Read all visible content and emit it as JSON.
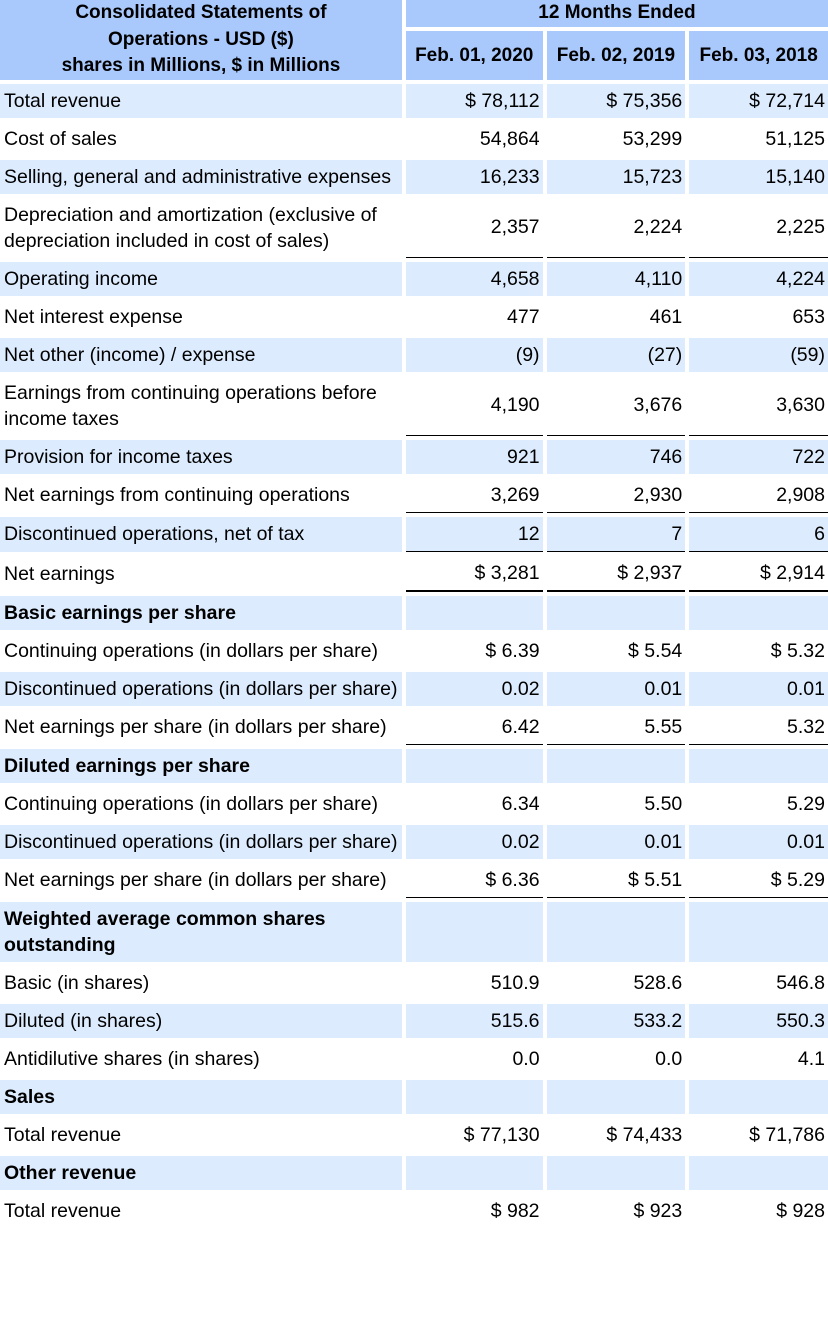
{
  "header": {
    "title_lines": [
      "Consolidated Statements of",
      "Operations - USD ($)",
      "shares in Millions, $ in Millions"
    ],
    "period_label": "12 Months Ended",
    "columns": [
      "Feb. 01, 2020",
      "Feb. 02, 2019",
      "Feb. 03, 2018"
    ]
  },
  "rows": [
    {
      "label": "Total revenue",
      "values": [
        "$ 78,112",
        "$ 75,356",
        "$ 72,714"
      ]
    },
    {
      "label": "Cost of sales",
      "values": [
        "54,864",
        "53,299",
        "51,125"
      ]
    },
    {
      "label": "Selling, general and administrative expenses",
      "values": [
        "16,233",
        "15,723",
        "15,140"
      ]
    },
    {
      "label": "Depreciation and amortization (exclusive of depreciation included in cost of sales)",
      "values": [
        "2,357",
        "2,224",
        "2,225"
      ]
    },
    {
      "label": "Operating income",
      "values": [
        "4,658",
        "4,110",
        "4,224"
      ]
    },
    {
      "label": "Net interest expense",
      "values": [
        "477",
        "461",
        "653"
      ]
    },
    {
      "label": "Net other (income) / expense",
      "values": [
        "(9)",
        "(27)",
        "(59)"
      ]
    },
    {
      "label": "Earnings from continuing operations before income taxes",
      "values": [
        "4,190",
        "3,676",
        "3,630"
      ]
    },
    {
      "label": "Provision for income taxes",
      "values": [
        "921",
        "746",
        "722"
      ]
    },
    {
      "label": "Net earnings from continuing operations",
      "values": [
        "3,269",
        "2,930",
        "2,908"
      ]
    },
    {
      "label": "Discontinued operations, net of tax",
      "values": [
        "12",
        "7",
        "6"
      ]
    },
    {
      "label": "Net earnings",
      "values": [
        "$ 3,281",
        "$ 2,937",
        "$ 2,914"
      ]
    },
    {
      "label": "Basic earnings per share",
      "values": [
        "",
        "",
        ""
      ]
    },
    {
      "label": "Continuing operations (in dollars per share)",
      "values": [
        "$ 6.39",
        "$ 5.54",
        "$ 5.32"
      ]
    },
    {
      "label": "Discontinued operations (in dollars per share)",
      "values": [
        "0.02",
        "0.01",
        "0.01"
      ]
    },
    {
      "label": "Net earnings per share (in dollars per share)",
      "values": [
        "6.42",
        "5.55",
        "5.32"
      ]
    },
    {
      "label": "Diluted earnings per share",
      "values": [
        "",
        "",
        ""
      ]
    },
    {
      "label": "Continuing operations (in dollars per share)",
      "values": [
        "6.34",
        "5.50",
        "5.29"
      ]
    },
    {
      "label": "Discontinued operations (in dollars per share)",
      "values": [
        "0.02",
        "0.01",
        "0.01"
      ]
    },
    {
      "label": "Net earnings per share (in dollars per share)",
      "values": [
        "$ 6.36",
        "$ 5.51",
        "$ 5.29"
      ]
    },
    {
      "label": "Weighted average common shares outstanding",
      "values": [
        "",
        "",
        ""
      ]
    },
    {
      "label": "Basic (in shares)",
      "values": [
        "510.9",
        "528.6",
        "546.8"
      ]
    },
    {
      "label": "Diluted (in shares)",
      "values": [
        "515.6",
        "533.2",
        "550.3"
      ]
    },
    {
      "label": "Antidilutive shares (in shares)",
      "values": [
        "0.0",
        "0.0",
        "4.1"
      ]
    },
    {
      "label": "Sales",
      "values": [
        "",
        "",
        ""
      ]
    },
    {
      "label": "Total revenue",
      "values": [
        "$ 77,130",
        "$ 74,433",
        "$ 71,786"
      ]
    },
    {
      "label": "Other revenue",
      "values": [
        "",
        "",
        ""
      ]
    },
    {
      "label": "Total revenue",
      "values": [
        "$ 982",
        "$ 923",
        "$ 928"
      ]
    }
  ]
}
